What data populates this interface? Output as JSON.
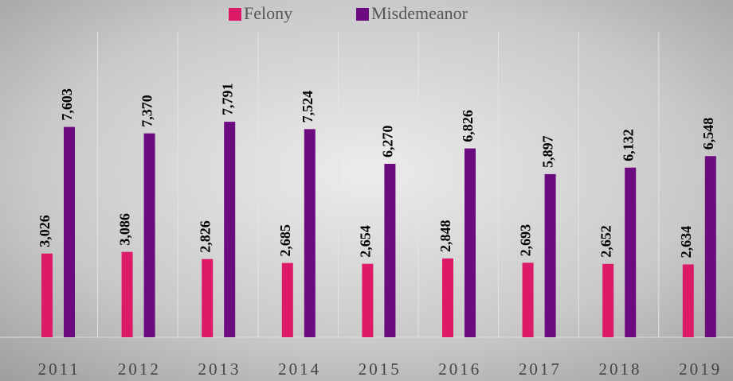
{
  "chart_data": {
    "type": "bar",
    "categories": [
      "2011",
      "2012",
      "2013",
      "2014",
      "2015",
      "2016",
      "2017",
      "2018",
      "2019"
    ],
    "series": [
      {
        "name": "Felony",
        "color": "#dc1a68",
        "values": [
          3026,
          3086,
          2826,
          2685,
          2654,
          2848,
          2693,
          2652,
          2634
        ],
        "value_labels": [
          "3,026",
          "3,086",
          "2,826",
          "2,685",
          "2,654",
          "2,848",
          "2,693",
          "2,652",
          "2,634"
        ]
      },
      {
        "name": "Misdemeanor",
        "color": "#6c0a80",
        "values": [
          7603,
          7370,
          7791,
          7524,
          6270,
          6826,
          5897,
          6132,
          6548
        ],
        "value_labels": [
          "7,603",
          "7,370",
          "7,791",
          "7,524",
          "6,270",
          "6,826",
          "5,897",
          "6,132",
          "6,548"
        ]
      }
    ],
    "ylim": [
      0,
      9000
    ],
    "legend": "top",
    "grid": false
  }
}
